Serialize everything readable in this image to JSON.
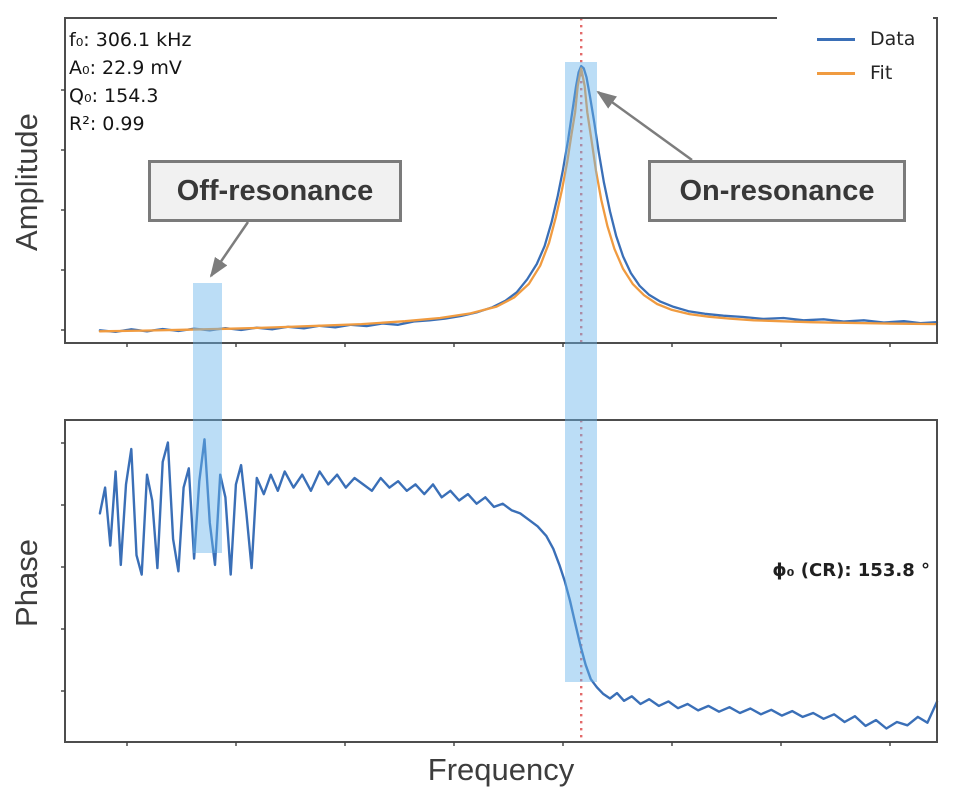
{
  "axes": {
    "amplitude_ylabel": "Amplitude",
    "phase_ylabel": "Phase",
    "xlabel": "Frequency"
  },
  "fit_params": {
    "f0": "f₀: 306.1 kHz",
    "A0": "A₀: 22.9 mV",
    "Q0": "Q₀: 154.3",
    "R2": "R²: 0.99"
  },
  "legend": {
    "data_label": "Data",
    "fit_label": "Fit",
    "position": "upper right"
  },
  "callouts": {
    "off_resonance": "Off-resonance",
    "on_resonance": "On-resonance"
  },
  "phase_annotation": "ϕ₀ (CR): 153.8 °",
  "colors": {
    "data_line": "#3a6fb7",
    "fit_line": "#f09b40",
    "highlight_band": "rgba(105,180,235,0.45)",
    "resonance_line": "#e36a6a",
    "arrow_gray": "#7d7d7d"
  },
  "chart_data": [
    {
      "type": "line",
      "subplot": "amplitude",
      "xlabel": "Frequency",
      "ylabel": "Amplitude",
      "note": "x and y are normalized 0-1 plot fractions; no numeric tick labels are shown in the figure",
      "grid": false,
      "legend_position": "upper right",
      "resonance_vline_x": 0.592,
      "highlight_bands_x": [
        [
          0.147,
          0.18
        ],
        [
          0.573,
          0.61
        ]
      ],
      "fit_results": {
        "f0_kHz": 306.1,
        "A0_mV": 22.9,
        "Q0": 154.3,
        "R2": 0.99
      },
      "series": [
        {
          "name": "Data",
          "color": "#3a6fb7",
          "x": [
            0.04,
            0.058,
            0.076,
            0.094,
            0.112,
            0.13,
            0.148,
            0.166,
            0.184,
            0.202,
            0.22,
            0.238,
            0.256,
            0.274,
            0.292,
            0.31,
            0.328,
            0.346,
            0.364,
            0.382,
            0.4,
            0.418,
            0.436,
            0.454,
            0.472,
            0.49,
            0.505,
            0.518,
            0.53,
            0.541,
            0.55,
            0.558,
            0.565,
            0.571,
            0.577,
            0.582,
            0.586,
            0.589,
            0.592,
            0.595,
            0.598,
            0.602,
            0.607,
            0.612,
            0.618,
            0.625,
            0.632,
            0.64,
            0.649,
            0.659,
            0.67,
            0.683,
            0.698,
            0.715,
            0.734,
            0.755,
            0.778,
            0.801,
            0.824,
            0.847,
            0.87,
            0.893,
            0.916,
            0.939,
            0.962,
            0.981,
            1.0
          ],
          "y": [
            0.039,
            0.034,
            0.042,
            0.036,
            0.043,
            0.037,
            0.044,
            0.039,
            0.046,
            0.04,
            0.047,
            0.042,
            0.05,
            0.045,
            0.053,
            0.048,
            0.056,
            0.052,
            0.06,
            0.056,
            0.066,
            0.07,
            0.075,
            0.083,
            0.094,
            0.11,
            0.13,
            0.156,
            0.196,
            0.243,
            0.298,
            0.372,
            0.452,
            0.532,
            0.625,
            0.716,
            0.789,
            0.833,
            0.852,
            0.845,
            0.818,
            0.76,
            0.678,
            0.588,
            0.494,
            0.405,
            0.33,
            0.266,
            0.215,
            0.176,
            0.148,
            0.127,
            0.111,
            0.098,
            0.09,
            0.084,
            0.08,
            0.074,
            0.077,
            0.07,
            0.073,
            0.066,
            0.07,
            0.063,
            0.067,
            0.061,
            0.064
          ]
        },
        {
          "name": "Fit",
          "color": "#f09b40",
          "x": [
            0.04,
            0.09,
            0.14,
            0.19,
            0.24,
            0.29,
            0.34,
            0.39,
            0.43,
            0.465,
            0.495,
            0.515,
            0.532,
            0.545,
            0.555,
            0.563,
            0.57,
            0.576,
            0.581,
            0.585,
            0.588,
            0.592,
            0.596,
            0.599,
            0.604,
            0.609,
            0.615,
            0.622,
            0.63,
            0.64,
            0.651,
            0.664,
            0.679,
            0.696,
            0.716,
            0.738,
            0.762,
            0.79,
            0.82,
            0.855,
            0.895,
            0.94,
            1.0
          ],
          "y": [
            0.036,
            0.038,
            0.041,
            0.044,
            0.048,
            0.053,
            0.058,
            0.067,
            0.077,
            0.091,
            0.112,
            0.14,
            0.182,
            0.238,
            0.308,
            0.388,
            0.472,
            0.558,
            0.644,
            0.71,
            0.79,
            0.845,
            0.79,
            0.71,
            0.62,
            0.53,
            0.44,
            0.36,
            0.29,
            0.228,
            0.182,
            0.147,
            0.12,
            0.102,
            0.089,
            0.081,
            0.075,
            0.07,
            0.067,
            0.064,
            0.062,
            0.06,
            0.058
          ]
        }
      ]
    },
    {
      "type": "line",
      "subplot": "phase",
      "xlabel": "Frequency",
      "ylabel": "Phase",
      "note": "x and y are normalized 0-1 plot fractions; phase is noisy off-resonance and drops sharply through resonance",
      "grid": false,
      "resonance_vline_x": 0.592,
      "highlight_bands_x": [
        [
          0.147,
          0.18
        ],
        [
          0.573,
          0.61
        ]
      ],
      "phase_at_resonance_deg": 153.8,
      "series": [
        {
          "name": "Data",
          "color": "#3a6fb7",
          "x": [
            0.04,
            0.046,
            0.052,
            0.058,
            0.064,
            0.07,
            0.076,
            0.082,
            0.088,
            0.094,
            0.1,
            0.106,
            0.112,
            0.118,
            0.124,
            0.13,
            0.136,
            0.142,
            0.148,
            0.154,
            0.16,
            0.166,
            0.172,
            0.178,
            0.184,
            0.19,
            0.196,
            0.202,
            0.208,
            0.214,
            0.22,
            0.228,
            0.236,
            0.244,
            0.252,
            0.262,
            0.272,
            0.282,
            0.292,
            0.302,
            0.312,
            0.322,
            0.332,
            0.342,
            0.352,
            0.362,
            0.372,
            0.382,
            0.392,
            0.402,
            0.412,
            0.422,
            0.432,
            0.442,
            0.452,
            0.462,
            0.472,
            0.482,
            0.492,
            0.502,
            0.512,
            0.522,
            0.532,
            0.542,
            0.552,
            0.56,
            0.567,
            0.573,
            0.579,
            0.585,
            0.591,
            0.597,
            0.603,
            0.61,
            0.617,
            0.625,
            0.633,
            0.641,
            0.65,
            0.66,
            0.67,
            0.681,
            0.692,
            0.703,
            0.714,
            0.726,
            0.738,
            0.75,
            0.762,
            0.774,
            0.786,
            0.798,
            0.81,
            0.822,
            0.834,
            0.846,
            0.858,
            0.87,
            0.882,
            0.894,
            0.906,
            0.918,
            0.93,
            0.942,
            0.954,
            0.966,
            0.978,
            0.989,
            1.0
          ],
          "y": [
            0.71,
            0.79,
            0.61,
            0.84,
            0.55,
            0.8,
            0.91,
            0.58,
            0.52,
            0.83,
            0.75,
            0.54,
            0.87,
            0.93,
            0.63,
            0.53,
            0.79,
            0.85,
            0.57,
            0.81,
            0.94,
            0.68,
            0.55,
            0.83,
            0.76,
            0.52,
            0.8,
            0.86,
            0.71,
            0.54,
            0.82,
            0.77,
            0.83,
            0.78,
            0.84,
            0.79,
            0.83,
            0.78,
            0.84,
            0.8,
            0.83,
            0.79,
            0.82,
            0.8,
            0.78,
            0.82,
            0.79,
            0.81,
            0.78,
            0.8,
            0.77,
            0.8,
            0.76,
            0.78,
            0.75,
            0.77,
            0.74,
            0.76,
            0.73,
            0.74,
            0.72,
            0.71,
            0.69,
            0.67,
            0.64,
            0.6,
            0.55,
            0.5,
            0.44,
            0.37,
            0.3,
            0.24,
            0.195,
            0.17,
            0.15,
            0.135,
            0.152,
            0.128,
            0.142,
            0.118,
            0.133,
            0.112,
            0.126,
            0.105,
            0.118,
            0.098,
            0.112,
            0.094,
            0.108,
            0.09,
            0.104,
            0.086,
            0.1,
            0.082,
            0.096,
            0.078,
            0.09,
            0.072,
            0.086,
            0.062,
            0.08,
            0.05,
            0.068,
            0.042,
            0.062,
            0.052,
            0.078,
            0.06,
            0.125
          ]
        }
      ]
    }
  ]
}
